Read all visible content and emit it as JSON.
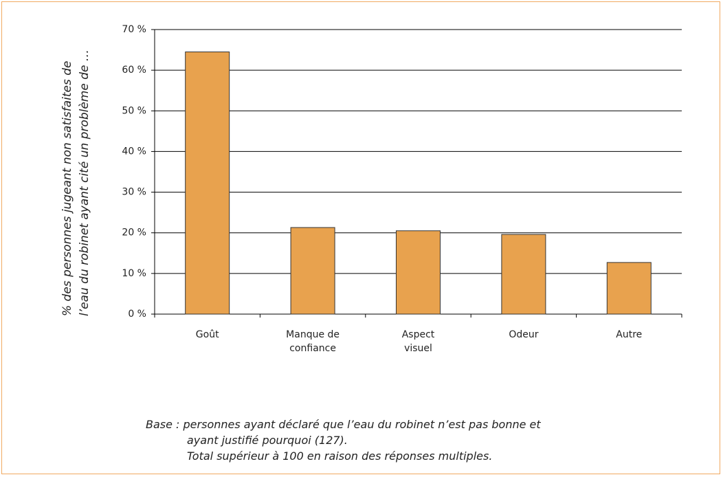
{
  "chart_data": {
    "type": "bar",
    "ylabel": "% des personnes jugeant non satisfaites de l’eau du robinet ayant cité un problème de …",
    "categories": [
      "Goût",
      "Manque de confiance",
      "Aspect visuel",
      "Odeur",
      "Autre"
    ],
    "values": [
      64.5,
      21.3,
      20.5,
      19.6,
      12.7
    ],
    "color": "#e8a24e",
    "ylim": [
      0,
      70
    ],
    "yticks": [
      {
        "value": 0,
        "label": "0 %"
      },
      {
        "value": 10,
        "label": "10 %"
      },
      {
        "value": 20,
        "label": "20 %"
      },
      {
        "value": 30,
        "label": "30 %"
      },
      {
        "value": 40,
        "label": "40 %"
      },
      {
        "value": 50,
        "label": "50 %"
      },
      {
        "value": 60,
        "label": "60 %"
      },
      {
        "value": 70,
        "label": "70 %"
      }
    ],
    "grid": true,
    "caption": [
      "Base : personnes ayant déclaré que l’eau du robinet n’est pas bonne et",
      "ayant justifié pourquoi (127).",
      "Total supérieur à 100 en raison des réponses multiples."
    ]
  }
}
